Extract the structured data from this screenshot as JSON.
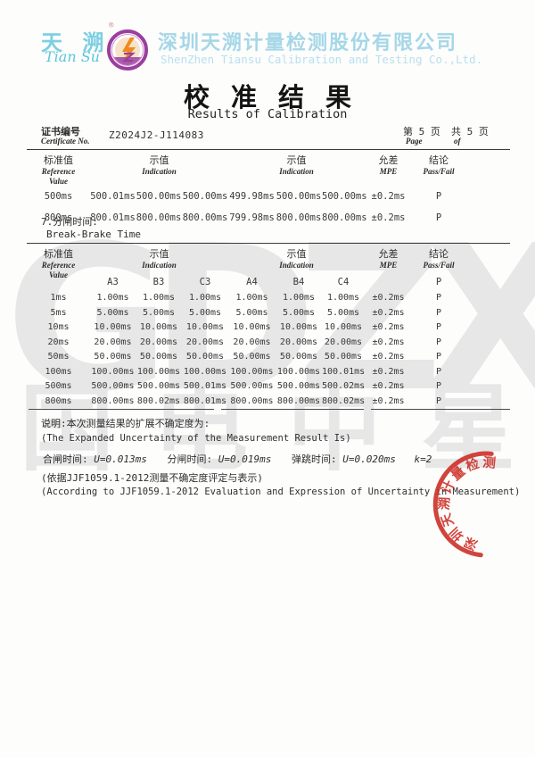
{
  "header": {
    "logo_cn": "天 溯",
    "logo_reg": "®",
    "logo_script": "Tian Su",
    "company_cn": "深圳天溯计量检测股份有限公司",
    "company_en": "ShenZhen Tiansu Calibration and Testing Co.,Ltd.",
    "title_cn": "校准结果",
    "title_en": "Results of Calibration"
  },
  "certificate": {
    "label_cn": "证书编号",
    "label_en": "Certificate No.",
    "number": "Z2024J2-J114083",
    "page_cn": "第 5 页",
    "page_en": "Page",
    "total_cn": "共 5 页",
    "total_en": "of"
  },
  "columns": {
    "ref_cn": "标准值",
    "ref_en1": "Reference",
    "ref_en2": "Value",
    "ind_cn": "示值",
    "ind_en": "Indication",
    "mpe_cn": "允差",
    "mpe_en": "MPE",
    "res_cn": "结论",
    "res_en": "Pass/Fail"
  },
  "table1": {
    "rows": [
      [
        "500ms",
        "500.01ms",
        "500.00ms",
        "500.00ms",
        "499.98ms",
        "500.00ms",
        "500.00ms",
        "±0.2ms",
        "P"
      ],
      [
        "800ms",
        "800.01ms",
        "800.00ms",
        "800.00ms",
        "799.98ms",
        "800.00ms",
        "800.00ms",
        "±0.2ms",
        "P"
      ]
    ]
  },
  "section7": {
    "no_cn": "7.分闸时间:",
    "title_en": "Break-Brake Time"
  },
  "table2": {
    "subheader_rows": [
      [
        "",
        "A3",
        "B3",
        "C3",
        "A4",
        "B4",
        "C4",
        "",
        "P"
      ]
    ],
    "rows": [
      [
        "1ms",
        "1.00ms",
        "1.00ms",
        "1.00ms",
        "1.00ms",
        "1.00ms",
        "1.00ms",
        "±0.2ms",
        "P"
      ],
      [
        "5ms",
        "5.00ms",
        "5.00ms",
        "5.00ms",
        "5.00ms",
        "5.00ms",
        "5.00ms",
        "±0.2ms",
        "P"
      ],
      [
        "10ms",
        "10.00ms",
        "10.00ms",
        "10.00ms",
        "10.00ms",
        "10.00ms",
        "10.00ms",
        "±0.2ms",
        "P"
      ],
      [
        "20ms",
        "20.00ms",
        "20.00ms",
        "20.00ms",
        "20.00ms",
        "20.00ms",
        "20.00ms",
        "±0.2ms",
        "P"
      ],
      [
        "50ms",
        "50.00ms",
        "50.00ms",
        "50.00ms",
        "50.00ms",
        "50.00ms",
        "50.00ms",
        "±0.2ms",
        "P"
      ],
      [
        "100ms",
        "100.00ms",
        "100.00ms",
        "100.00ms",
        "100.00ms",
        "100.00ms",
        "100.01ms",
        "±0.2ms",
        "P"
      ],
      [
        "500ms",
        "500.00ms",
        "500.00ms",
        "500.01ms",
        "500.00ms",
        "500.00ms",
        "500.02ms",
        "±0.2ms",
        "P"
      ],
      [
        "800ms",
        "800.00ms",
        "800.02ms",
        "800.01ms",
        "800.00ms",
        "800.00ms",
        "800.02ms",
        "±0.2ms",
        "P"
      ]
    ]
  },
  "notes": {
    "line1_cn": "说明:本次测量结果的扩展不确定度为:",
    "line1_en": "(The Expanded Uncertainty of the Measurement Result Is)",
    "close_label": "合闸时间:",
    "close_value": "U=0.013ms",
    "open_label": "分闸时间:",
    "open_value": "U=0.019ms",
    "bounce_label": "弹跳时间:",
    "bounce_value": "U=0.020ms",
    "k_value": "k=2",
    "basis_cn": "(依据JJF1059.1-2012测量不确定度评定与表示)",
    "basis_en": "(According to JJF1059.1-2012 Evaluation and Expression of Uncertainty in Measurement)"
  },
  "watermark": {
    "letters": "GDZX",
    "cjk": "国电中星"
  },
  "stamp": {
    "text": "深圳天溯计量检测股份有限公司"
  }
}
